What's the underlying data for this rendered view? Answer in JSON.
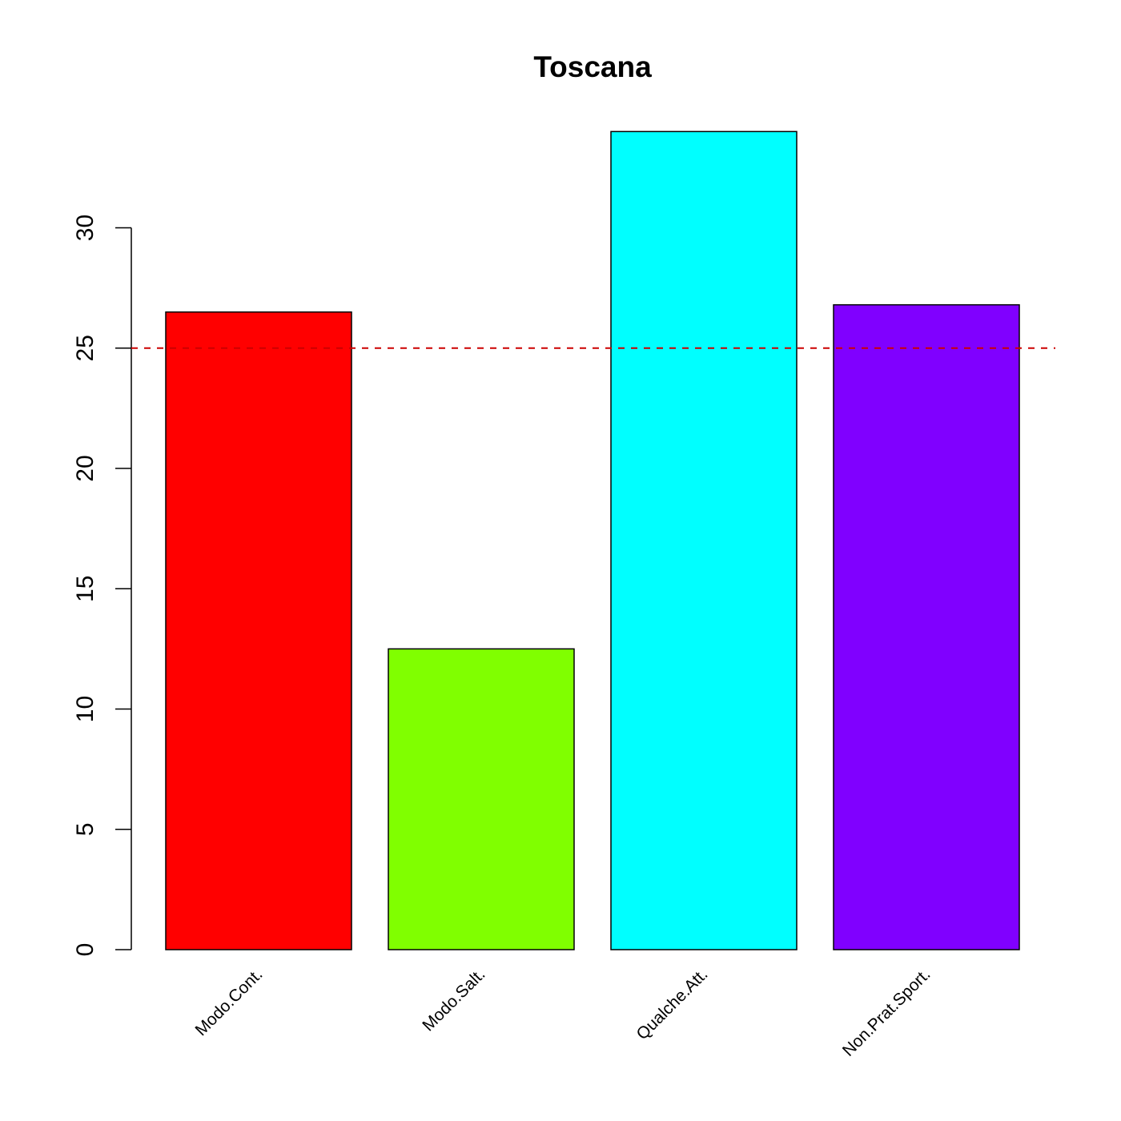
{
  "chart_data": {
    "type": "bar",
    "title": "Toscana",
    "xlabel": "",
    "ylabel": "",
    "categories": [
      "Modo.Cont.",
      "Modo.Salt.",
      "Qualche.Att.",
      "Non.Prat.Sport."
    ],
    "values": [
      26.5,
      12.5,
      34.0,
      26.8
    ],
    "colors": [
      "#FF0000",
      "#80FF00",
      "#00FFFF",
      "#8000FF"
    ],
    "yticks": [
      0,
      5,
      10,
      15,
      20,
      25,
      30
    ],
    "ytick_labels": [
      "0",
      "5",
      "10",
      "15",
      "20",
      "25",
      "30"
    ],
    "ylim": [
      0,
      34
    ],
    "reference_line": {
      "value": 25,
      "color": "#CC0000",
      "style": "dashed"
    },
    "grid": false,
    "legend": "none"
  }
}
